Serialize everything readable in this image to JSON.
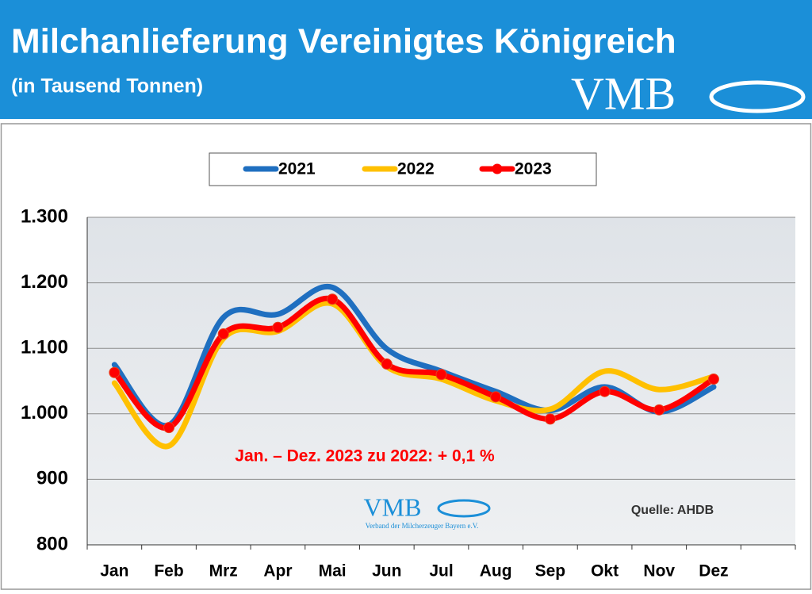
{
  "header": {
    "title": "Milchanlieferung Vereinigtes Königreich",
    "subtitle": "(in Tausend Tonnen)",
    "logo": "VMB"
  },
  "chart_data": {
    "type": "line",
    "categories": [
      "Jan",
      "Feb",
      "Mrz",
      "Apr",
      "Mai",
      "Jun",
      "Jul",
      "Aug",
      "Sep",
      "Okt",
      "Nov",
      "Dez",
      null
    ],
    "series": [
      {
        "name": "2021",
        "color": "#1f6fc0",
        "values": [
          1075,
          983,
          1147,
          1152,
          1193,
          1099,
          1065,
          1034,
          1005,
          1041,
          1003,
          1041,
          null
        ]
      },
      {
        "name": "2022",
        "color": "#ffc000",
        "values": [
          1047,
          951,
          1115,
          1126,
          1168,
          1072,
          1053,
          1020,
          1007,
          1065,
          1037,
          1057,
          null
        ]
      },
      {
        "name": "2023",
        "color": "#ff0000",
        "markers": true,
        "values": [
          1063,
          979,
          1122,
          1132,
          1175,
          1076,
          1060,
          1026,
          992,
          1034,
          1006,
          1053,
          null
        ]
      }
    ],
    "ylim": [
      800,
      1300
    ],
    "yticks": [
      800,
      900,
      {
        "value": 1000,
        "label": "1.000"
      },
      {
        "value": 1100,
        "label": "1.100"
      },
      {
        "value": 1200,
        "label": "1.200"
      },
      {
        "value": 1300,
        "label": "1.300"
      }
    ],
    "grid": true,
    "annotation": "Jan. – Dez. 2023 zu 2022: + 0,1 %",
    "source": "Quelle: AHDB",
    "watermark": {
      "logo": "VMB",
      "text": "Verband der Milcherzeuger Bayern e.V."
    }
  }
}
